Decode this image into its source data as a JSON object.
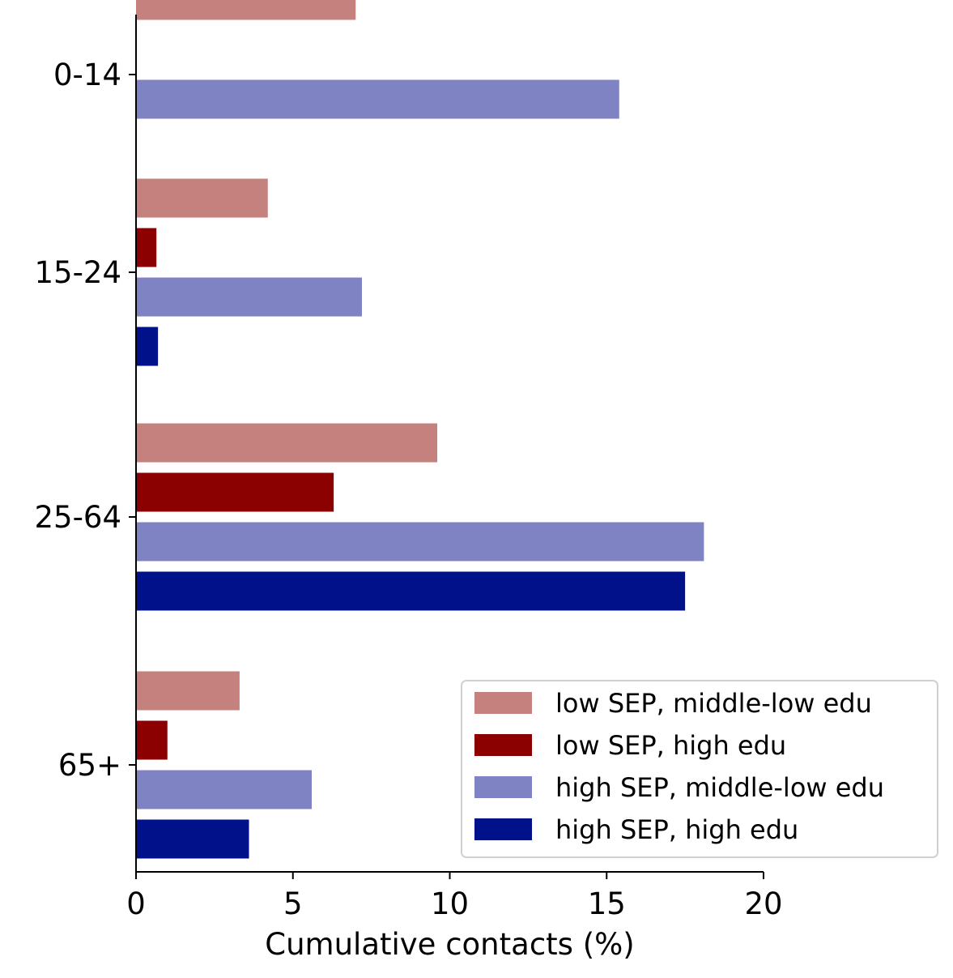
{
  "chart_data": {
    "type": "bar",
    "orientation": "horizontal",
    "categories": [
      "0-14",
      "15-24",
      "25-64",
      "65+"
    ],
    "series": [
      {
        "name": "low SEP, middle-low edu",
        "color": "#c4817e",
        "values": [
          7.0,
          4.2,
          9.6,
          3.3
        ]
      },
      {
        "name": "low SEP, high edu",
        "color": "#8b0000",
        "values": [
          0,
          0.65,
          6.3,
          1.0
        ]
      },
      {
        "name": "high SEP, middle-low edu",
        "color": "#8083c3",
        "values": [
          15.4,
          7.2,
          18.1,
          5.6
        ]
      },
      {
        "name": "high SEP, high edu",
        "color": "#00118a",
        "values": [
          0,
          0.7,
          17.5,
          3.6
        ]
      }
    ],
    "xlabel": "Cumulative contacts (%)",
    "ylabel": "",
    "xlim": [
      0,
      20
    ],
    "xticks": [
      "0",
      "5",
      "10",
      "15",
      "20"
    ],
    "grid": false,
    "legend_position": "lower-right"
  }
}
